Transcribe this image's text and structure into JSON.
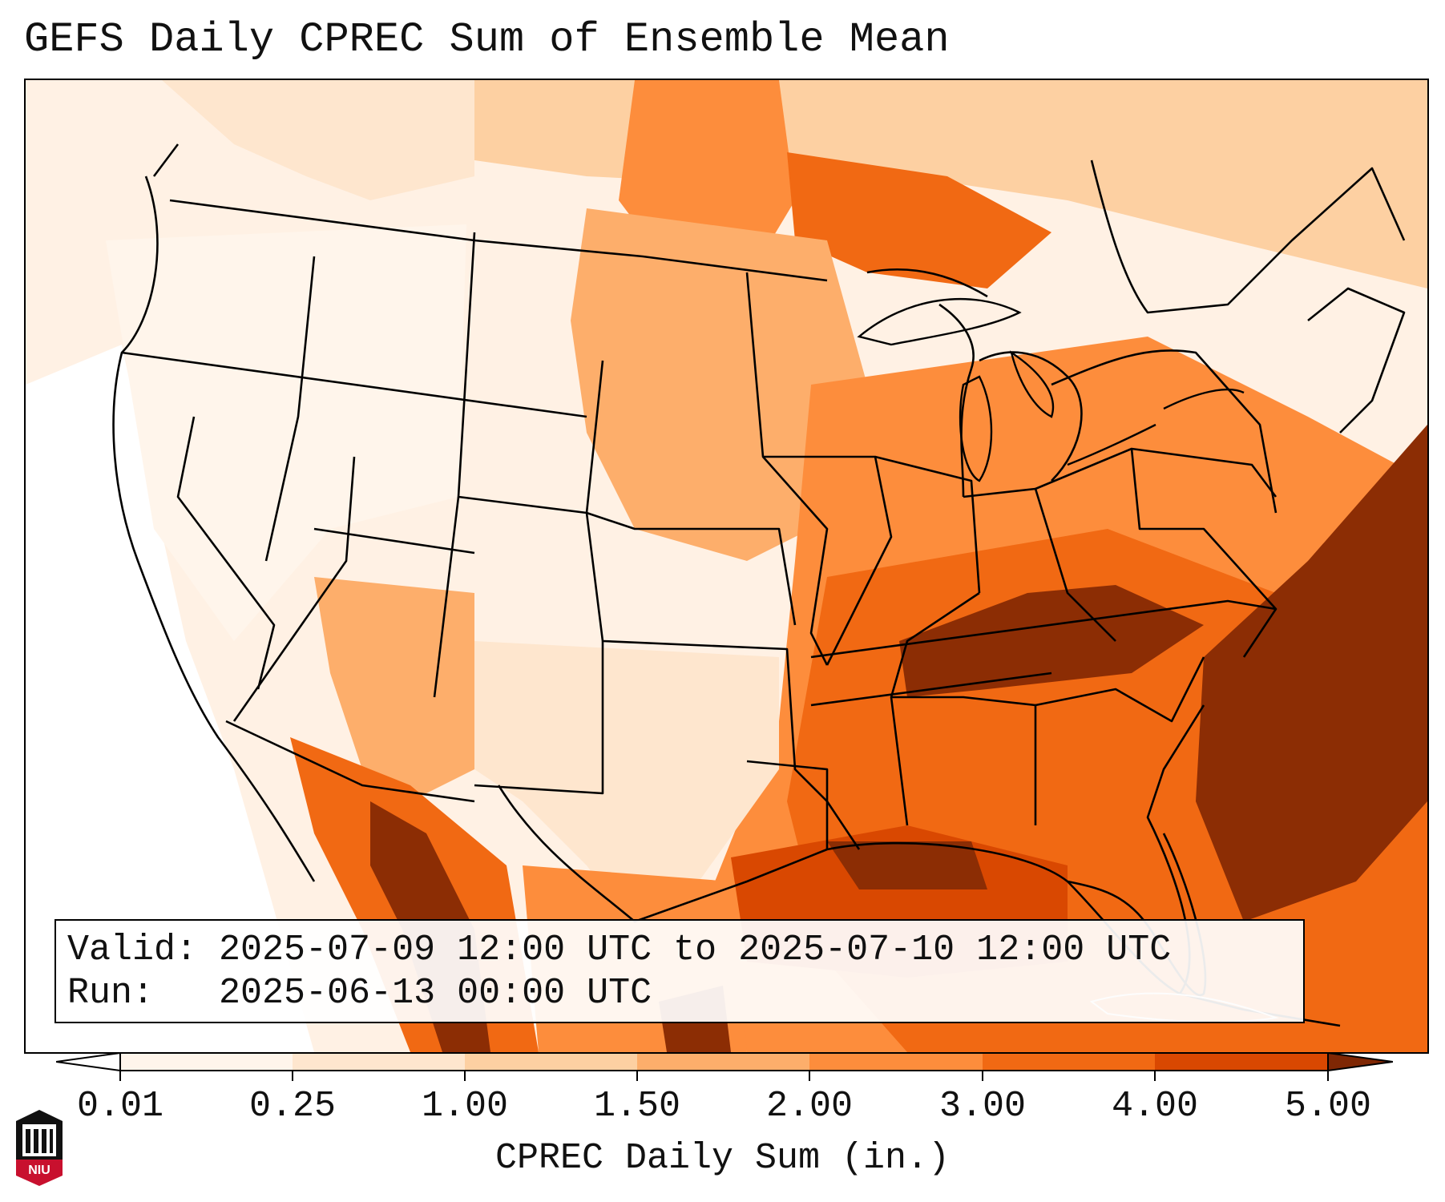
{
  "title": "GEFS Daily CPREC Sum of Ensemble Mean",
  "info": {
    "valid": "Valid: 2025-07-09 12:00 UTC to 2025-07-10 12:00 UTC",
    "run": "Run:   2025-06-13 00:00 UTC"
  },
  "colorbar": {
    "label": "CPREC Daily Sum (in.)",
    "ticks": [
      "0.01",
      "0.25",
      "1.00",
      "1.50",
      "2.00",
      "3.00",
      "4.00",
      "5.00"
    ],
    "colors": [
      "#fff5eb",
      "#fee6ce",
      "#fdd0a2",
      "#fdae6b",
      "#fd8d3c",
      "#f16913",
      "#d94801",
      "#8c2d04"
    ],
    "under_color": "#ffffff",
    "over_color": "#7f2704"
  },
  "logo": {
    "text": "NIU",
    "icon": "niu-building-logo"
  }
}
